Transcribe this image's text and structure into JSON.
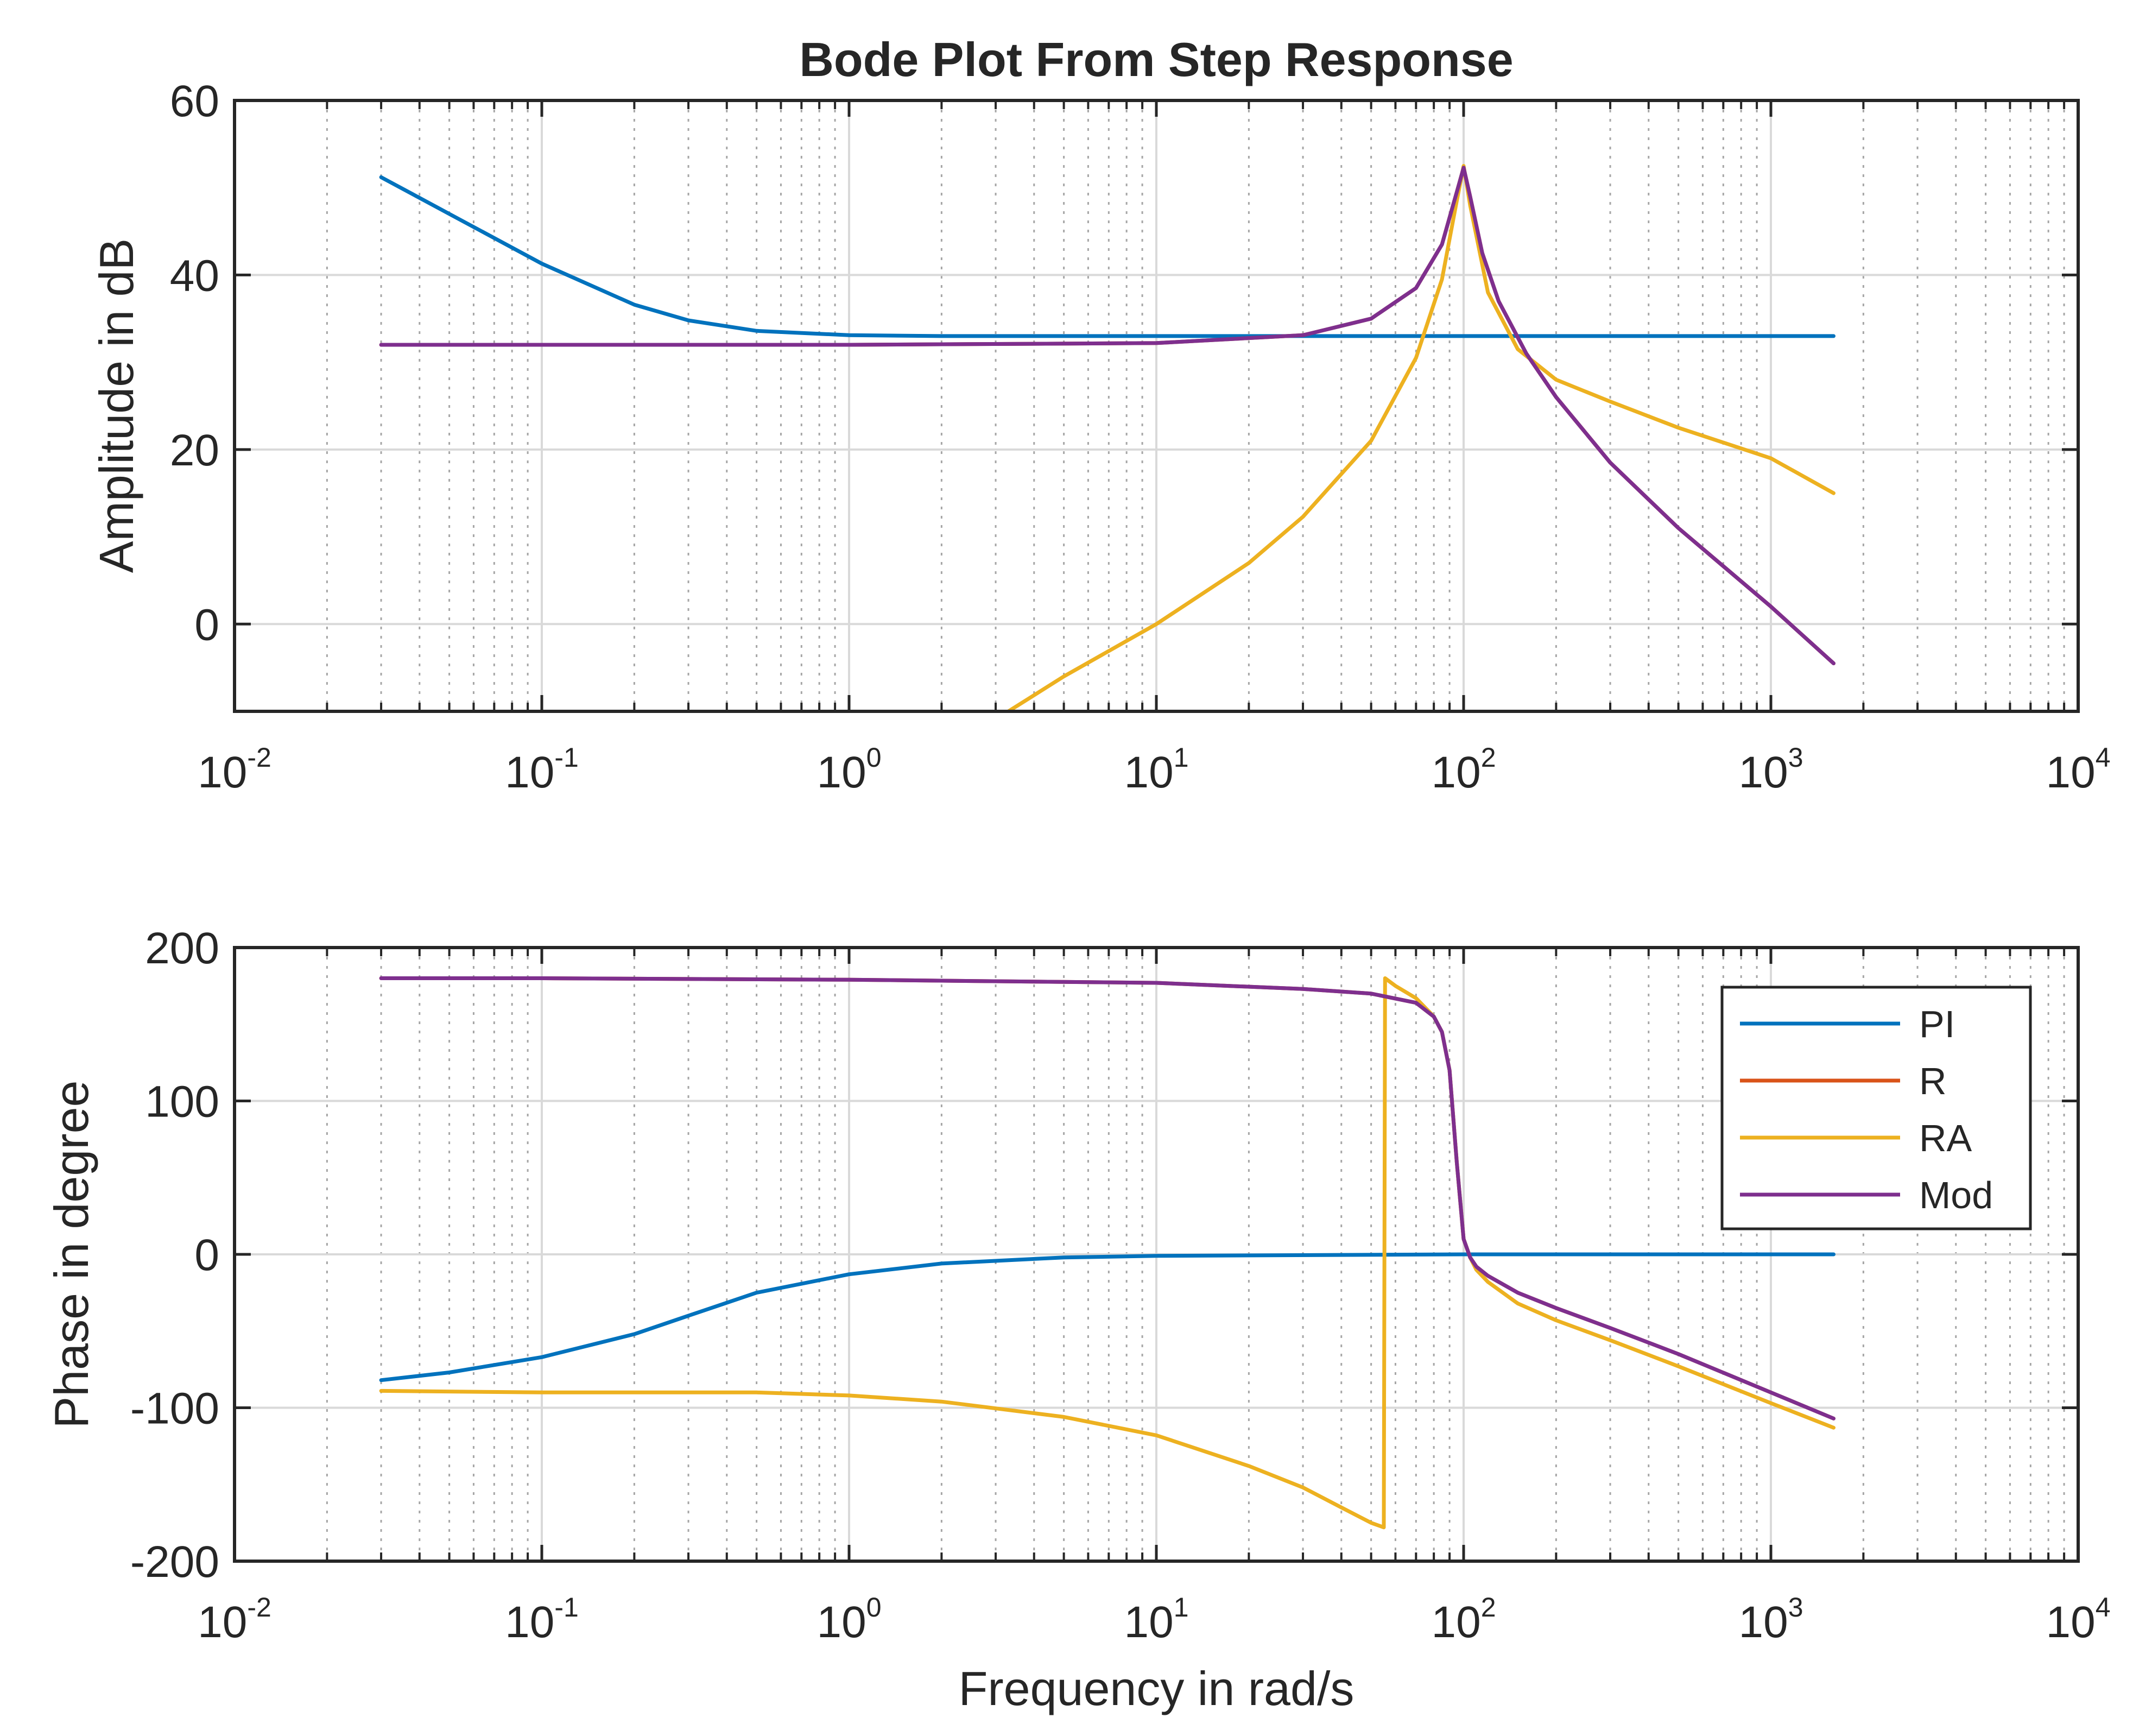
{
  "chart_data": {
    "type": "line",
    "title": "Bode Plot From Step Response",
    "xlabel": "Frequency in rad/s",
    "xscale": "log",
    "xlim": [
      0.01,
      10000
    ],
    "xticks": [
      0.01,
      0.1,
      1,
      10,
      100,
      1000,
      10000
    ],
    "xtick_labels": [
      {
        "base": "10",
        "exp": "-2"
      },
      {
        "base": "10",
        "exp": "-1"
      },
      {
        "base": "10",
        "exp": "0"
      },
      {
        "base": "10",
        "exp": "1"
      },
      {
        "base": "10",
        "exp": "2"
      },
      {
        "base": "10",
        "exp": "3"
      },
      {
        "base": "10",
        "exp": "4"
      }
    ],
    "grid": true,
    "legend_location": "top-right of phase plot",
    "colors": {
      "PI": "#0072BD",
      "R": "#D95319",
      "RA": "#EDB120",
      "Mod": "#7E2F8E"
    },
    "legend": [
      "PI",
      "R",
      "RA",
      "Mod"
    ],
    "subplots": [
      {
        "id": "magnitude",
        "ylabel": "Amplitude in dB",
        "ylim": [
          -10,
          60
        ],
        "yticks": [
          0,
          20,
          40,
          60
        ],
        "series": [
          {
            "name": "PI",
            "x": [
              0.03,
              0.05,
              0.1,
              0.2,
              0.3,
              0.5,
              1,
              2,
              5,
              10,
              30,
              100,
              300,
              1000,
              1600
            ],
            "y": [
              51.2,
              47.0,
              41.3,
              36.6,
              34.8,
              33.6,
              33.1,
              33.0,
              33.0,
              33.0,
              33.0,
              33.0,
              33.0,
              33.0,
              33.0
            ]
          },
          {
            "name": "R",
            "x": [
              0.03,
              0.1,
              1,
              10,
              30,
              50,
              70,
              85,
              95,
              100,
              105,
              115,
              130,
              160,
              200,
              300,
              500,
              1000,
              1600
            ],
            "y": [
              32.0,
              32.0,
              32.0,
              32.2,
              33.1,
              35.0,
              38.5,
              43.5,
              49.5,
              52.3,
              49.0,
              42.5,
              37.0,
              31.0,
              26.0,
              18.5,
              11.0,
              2.0,
              -4.5
            ]
          },
          {
            "name": "RA",
            "x": [
              3.3,
              5,
              10,
              20,
              30,
              50,
              70,
              85,
              95,
              100,
              105,
              120,
              150,
              200,
              300,
              500,
              1000,
              1600
            ],
            "y": [
              -10.0,
              -6.0,
              0.0,
              7.0,
              12.3,
              21.0,
              30.5,
              39.5,
              48.5,
              52.5,
              48.0,
              38.0,
              31.5,
              28.0,
              25.5,
              22.5,
              19.0,
              15.0
            ]
          },
          {
            "name": "Mod",
            "x": [
              0.03,
              0.1,
              1,
              10,
              30,
              50,
              70,
              85,
              95,
              100,
              105,
              115,
              130,
              160,
              200,
              300,
              500,
              1000,
              1600
            ],
            "y": [
              32.0,
              32.0,
              32.0,
              32.2,
              33.1,
              35.0,
              38.5,
              43.5,
              49.5,
              52.3,
              49.0,
              42.5,
              37.0,
              31.0,
              26.0,
              18.5,
              11.0,
              2.0,
              -4.5
            ]
          }
        ]
      },
      {
        "id": "phase",
        "ylabel": "Phase in degree",
        "ylim": [
          -200,
          200
        ],
        "yticks": [
          -200,
          -100,
          0,
          100,
          200
        ],
        "series": [
          {
            "name": "PI",
            "x": [
              0.03,
              0.05,
              0.1,
              0.2,
              0.3,
              0.5,
              1,
              2,
              5,
              10,
              100,
              1000,
              1600
            ],
            "y": [
              -82,
              -77,
              -67,
              -52,
              -40,
              -25,
              -13,
              -6,
              -2,
              -1,
              0,
              0,
              0
            ]
          },
          {
            "name": "R",
            "x": [
              0.03,
              0.1,
              1,
              10,
              30,
              50,
              70,
              80,
              85,
              90,
              95,
              100,
              105,
              110,
              120,
              150,
              200,
              300,
              500,
              1000,
              1600
            ],
            "y": [
              180,
              180,
              179,
              177,
              173,
              170,
              164,
              155,
              145,
              120,
              60,
              10,
              -2,
              -8,
              -14,
              -25,
              -35,
              -48,
              -65,
              -90,
              -107
            ]
          },
          {
            "name": "RA",
            "x": [
              0.03,
              0.1,
              0.5,
              1,
              2,
              5,
              10,
              20,
              30,
              40,
              50,
              55,
              55.5,
              60,
              70,
              80,
              85,
              90,
              95,
              100,
              105,
              110,
              120,
              150,
              200,
              300,
              500,
              1000,
              1600
            ],
            "y": [
              -89,
              -90,
              -90,
              -92,
              -96,
              -106,
              -118,
              -138,
              -152,
              -165,
              -175,
              -178,
              180,
              175,
              167,
              155,
              145,
              120,
              60,
              10,
              -2,
              -10,
              -18,
              -32,
              -43,
              -56,
              -73,
              -97,
              -113
            ]
          },
          {
            "name": "Mod",
            "x": [
              0.03,
              0.1,
              1,
              10,
              30,
              50,
              70,
              80,
              85,
              90,
              95,
              100,
              105,
              110,
              120,
              150,
              200,
              300,
              500,
              1000,
              1600
            ],
            "y": [
              180,
              180,
              179,
              177,
              173,
              170,
              164,
              155,
              145,
              120,
              60,
              10,
              -2,
              -8,
              -14,
              -25,
              -35,
              -48,
              -65,
              -90,
              -107
            ]
          }
        ]
      }
    ]
  }
}
